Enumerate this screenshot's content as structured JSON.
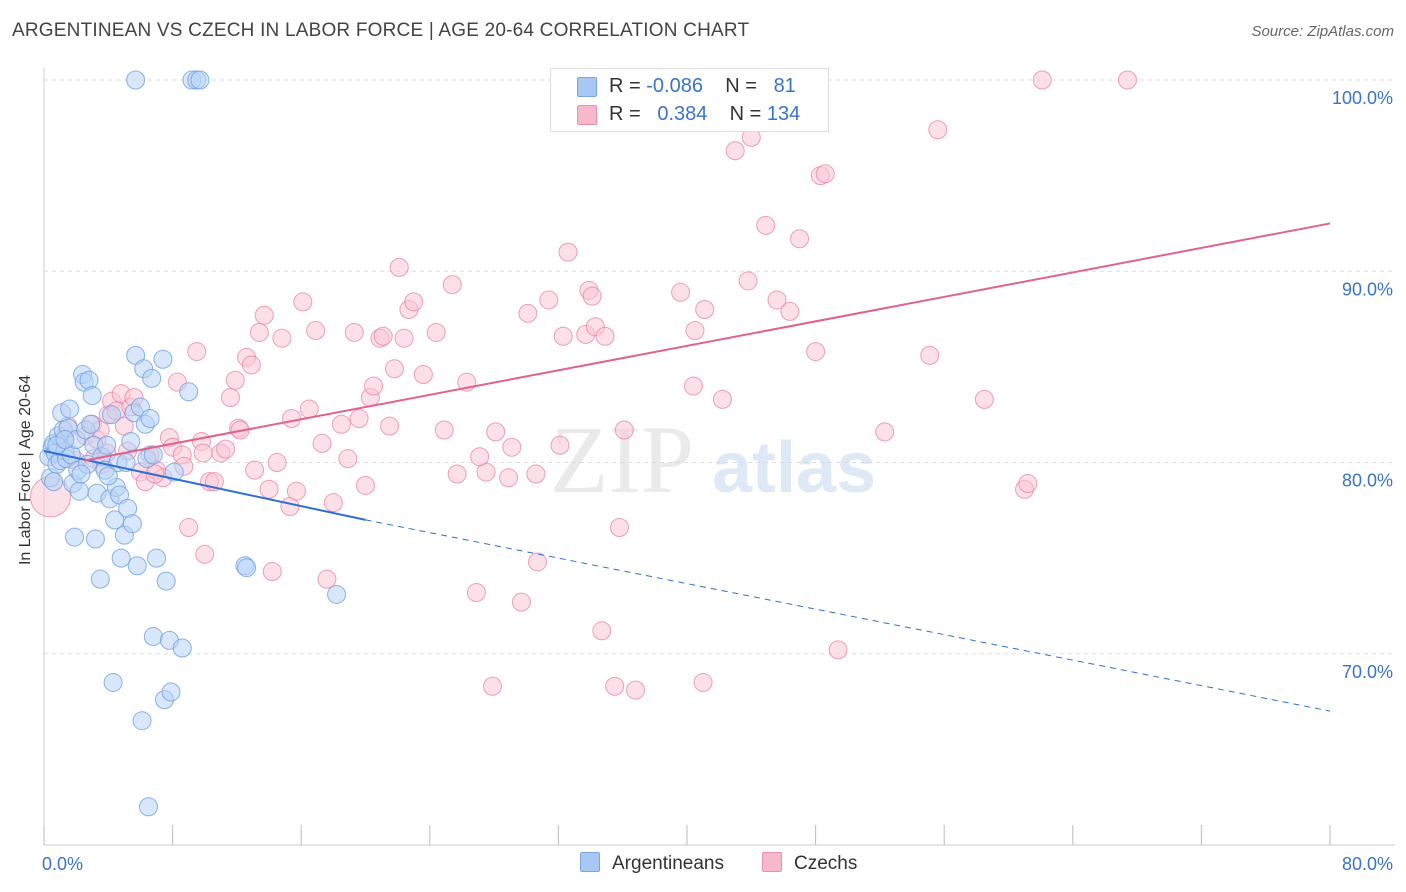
{
  "title": "ARGENTINEAN VS CZECH IN LABOR FORCE | AGE 20-64 CORRELATION CHART",
  "source": "Source: ZipAtlas.com",
  "watermark": {
    "zip": "ZIP",
    "atlas": "atlas"
  },
  "stats": [
    {
      "r_label": "R =",
      "r_value": "-0.086",
      "n_label": "N =",
      "n_value": "81",
      "color": "#a7c8f2",
      "border": "#7aa6e0"
    },
    {
      "r_label": "R =",
      "r_value": "0.384",
      "n_label": "N =",
      "n_value": "134",
      "color": "#f7b8cb",
      "border": "#ec8fae"
    }
  ],
  "legend": [
    {
      "label": "Argentineans",
      "color": "#a7c8f2",
      "border": "#7aa6e0"
    },
    {
      "label": "Czechs",
      "color": "#f7b8cb",
      "border": "#ec8fae"
    }
  ],
  "chart_data": {
    "type": "scatter",
    "title": "ARGENTINEAN VS CZECH IN LABOR FORCE | AGE 20-64 CORRELATION CHART",
    "xlabel": "",
    "ylabel": "In Labor Force | Age 20-64",
    "xlim": [
      0,
      80
    ],
    "ylim": [
      60,
      100
    ],
    "x_tick_labels": [
      "0.0%",
      "80.0%"
    ],
    "y_ticks": [
      70,
      80,
      90,
      100
    ],
    "y_tick_labels": [
      "70.0%",
      "80.0%",
      "90.0%",
      "100.0%"
    ],
    "grid": true,
    "legend_position": "bottom",
    "series": [
      {
        "name": "Argentineans",
        "color": "#6fa0e0",
        "fill": "#b8d3f5",
        "trend": {
          "x": [
            0,
            20
          ],
          "y": [
            80.6,
            77.0
          ],
          "dashed_to": [
            80,
            67.0
          ]
        },
        "points": [
          [
            0.3,
            80.3
          ],
          [
            0.4,
            79.2
          ],
          [
            0.5,
            80.8
          ],
          [
            0.6,
            81.0
          ],
          [
            0.7,
            80.5
          ],
          [
            0.8,
            79.9
          ],
          [
            0.9,
            81.4
          ],
          [
            1.0,
            80.1
          ],
          [
            1.1,
            82.6
          ],
          [
            1.2,
            81.7
          ],
          [
            1.3,
            80.6
          ],
          [
            1.4,
            80.2
          ],
          [
            1.5,
            81.8
          ],
          [
            1.6,
            82.8
          ],
          [
            1.7,
            80.4
          ],
          [
            1.8,
            78.9
          ],
          [
            1.9,
            76.1
          ],
          [
            2.0,
            81.2
          ],
          [
            2.1,
            79.6
          ],
          [
            2.2,
            78.5
          ],
          [
            2.4,
            84.6
          ],
          [
            2.5,
            84.2
          ],
          [
            2.6,
            81.7
          ],
          [
            2.7,
            79.9
          ],
          [
            2.8,
            84.3
          ],
          [
            3.0,
            83.5
          ],
          [
            3.1,
            80.9
          ],
          [
            3.2,
            76.0
          ],
          [
            3.3,
            78.4
          ],
          [
            3.5,
            73.9
          ],
          [
            3.6,
            80.3
          ],
          [
            3.8,
            79.6
          ],
          [
            4.1,
            78.1
          ],
          [
            4.2,
            82.5
          ],
          [
            4.3,
            68.5
          ],
          [
            4.4,
            77.0
          ],
          [
            4.5,
            78.7
          ],
          [
            4.6,
            80.0
          ],
          [
            4.7,
            78.3
          ],
          [
            4.8,
            75.0
          ],
          [
            5.0,
            76.2
          ],
          [
            5.2,
            77.6
          ],
          [
            5.4,
            81.1
          ],
          [
            5.5,
            76.8
          ],
          [
            5.6,
            82.6
          ],
          [
            5.7,
            85.6
          ],
          [
            5.8,
            74.6
          ],
          [
            6.0,
            82.9
          ],
          [
            6.1,
            66.5
          ],
          [
            6.2,
            84.9
          ],
          [
            6.3,
            82.0
          ],
          [
            6.4,
            80.2
          ],
          [
            6.5,
            62.0
          ],
          [
            6.6,
            82.3
          ],
          [
            6.7,
            84.4
          ],
          [
            6.8,
            70.9
          ],
          [
            7.0,
            75.0
          ],
          [
            7.4,
            85.4
          ],
          [
            7.5,
            67.6
          ],
          [
            7.6,
            73.8
          ],
          [
            7.8,
            70.7
          ],
          [
            7.9,
            68.0
          ],
          [
            8.1,
            79.5
          ],
          [
            8.6,
            70.3
          ],
          [
            9.0,
            83.7
          ],
          [
            9.2,
            100.0
          ],
          [
            9.5,
            100.0
          ],
          [
            9.7,
            100.0
          ],
          [
            5.7,
            100.0
          ],
          [
            12.5,
            74.6
          ],
          [
            12.6,
            74.5
          ],
          [
            18.2,
            73.1
          ],
          [
            6.8,
            80.4
          ],
          [
            0.8,
            80.9
          ],
          [
            2.3,
            79.4
          ],
          [
            1.3,
            81.2
          ],
          [
            3.9,
            80.9
          ],
          [
            2.9,
            82.0
          ],
          [
            5.1,
            80.0
          ],
          [
            4.0,
            79.3
          ],
          [
            0.6,
            79.0
          ]
        ]
      },
      {
        "name": "Czechs",
        "color": "#e8799e",
        "fill": "#f9c6d6",
        "trend": {
          "x": [
            2.5,
            80
          ],
          "y": [
            80.1,
            92.5
          ]
        },
        "points": [
          [
            0.4,
            78.2
          ],
          [
            1.2,
            81.3
          ],
          [
            1.5,
            81.9
          ],
          [
            2.0,
            80.1
          ],
          [
            2.6,
            81.4
          ],
          [
            3.0,
            82.0
          ],
          [
            3.1,
            80.2
          ],
          [
            3.3,
            81.2
          ],
          [
            3.5,
            81.7
          ],
          [
            3.6,
            79.9
          ],
          [
            4.0,
            82.5
          ],
          [
            4.2,
            83.2
          ],
          [
            4.5,
            82.7
          ],
          [
            4.8,
            83.6
          ],
          [
            5.0,
            81.9
          ],
          [
            5.2,
            80.6
          ],
          [
            5.4,
            82.9
          ],
          [
            5.6,
            83.4
          ],
          [
            6.0,
            79.5
          ],
          [
            6.3,
            79.0
          ],
          [
            6.6,
            80.4
          ],
          [
            7.0,
            79.6
          ],
          [
            7.4,
            79.2
          ],
          [
            7.8,
            81.3
          ],
          [
            8.0,
            80.8
          ],
          [
            8.3,
            84.2
          ],
          [
            8.6,
            80.4
          ],
          [
            9.0,
            76.6
          ],
          [
            9.5,
            85.8
          ],
          [
            9.8,
            81.1
          ],
          [
            10.0,
            75.2
          ],
          [
            10.3,
            79.0
          ],
          [
            10.6,
            79.0
          ],
          [
            11.0,
            80.5
          ],
          [
            11.3,
            80.7
          ],
          [
            11.6,
            83.4
          ],
          [
            11.9,
            84.3
          ],
          [
            12.1,
            81.8
          ],
          [
            12.6,
            85.5
          ],
          [
            12.9,
            85.1
          ],
          [
            13.1,
            79.6
          ],
          [
            13.4,
            86.8
          ],
          [
            13.7,
            87.7
          ],
          [
            14.0,
            78.6
          ],
          [
            14.2,
            74.3
          ],
          [
            14.5,
            80.0
          ],
          [
            14.8,
            86.5
          ],
          [
            15.3,
            77.7
          ],
          [
            15.7,
            78.5
          ],
          [
            16.1,
            88.4
          ],
          [
            16.5,
            82.8
          ],
          [
            16.9,
            86.9
          ],
          [
            17.3,
            81.0
          ],
          [
            17.6,
            73.9
          ],
          [
            18.0,
            77.9
          ],
          [
            18.5,
            82.0
          ],
          [
            18.9,
            80.2
          ],
          [
            19.3,
            86.8
          ],
          [
            19.6,
            82.3
          ],
          [
            20.0,
            78.8
          ],
          [
            20.3,
            83.4
          ],
          [
            20.5,
            84.0
          ],
          [
            20.9,
            86.5
          ],
          [
            21.1,
            86.6
          ],
          [
            21.8,
            84.9
          ],
          [
            22.1,
            90.2
          ],
          [
            22.4,
            86.5
          ],
          [
            22.7,
            88.0
          ],
          [
            23.0,
            88.4
          ],
          [
            23.6,
            84.6
          ],
          [
            24.4,
            86.8
          ],
          [
            24.9,
            81.7
          ],
          [
            25.4,
            89.3
          ],
          [
            25.7,
            79.4
          ],
          [
            26.3,
            84.2
          ],
          [
            26.9,
            73.2
          ],
          [
            27.5,
            79.5
          ],
          [
            27.9,
            68.3
          ],
          [
            28.1,
            81.6
          ],
          [
            28.9,
            79.2
          ],
          [
            29.1,
            80.8
          ],
          [
            29.7,
            72.7
          ],
          [
            30.1,
            87.8
          ],
          [
            30.6,
            79.4
          ],
          [
            30.7,
            74.8
          ],
          [
            31.4,
            88.5
          ],
          [
            32.1,
            80.9
          ],
          [
            32.3,
            86.6
          ],
          [
            32.6,
            91.0
          ],
          [
            33.7,
            86.7
          ],
          [
            33.9,
            89.0
          ],
          [
            34.1,
            88.7
          ],
          [
            34.3,
            87.1
          ],
          [
            34.7,
            71.2
          ],
          [
            34.9,
            86.6
          ],
          [
            35.5,
            68.3
          ],
          [
            35.8,
            76.6
          ],
          [
            36.1,
            81.7
          ],
          [
            36.8,
            68.1
          ],
          [
            37.0,
            100.0
          ],
          [
            39.1,
            98.8
          ],
          [
            39.6,
            88.9
          ],
          [
            40.4,
            84.0
          ],
          [
            40.5,
            86.9
          ],
          [
            41.0,
            68.5
          ],
          [
            41.1,
            88.0
          ],
          [
            42.2,
            83.3
          ],
          [
            43.0,
            96.3
          ],
          [
            43.8,
            89.5
          ],
          [
            44.0,
            97.0
          ],
          [
            44.9,
            92.4
          ],
          [
            45.6,
            88.5
          ],
          [
            46.4,
            87.9
          ],
          [
            47.0,
            91.7
          ],
          [
            48.0,
            85.8
          ],
          [
            48.3,
            95.0
          ],
          [
            48.6,
            95.1
          ],
          [
            49.4,
            70.2
          ],
          [
            52.3,
            81.6
          ],
          [
            55.1,
            85.6
          ],
          [
            55.6,
            97.4
          ],
          [
            58.5,
            83.3
          ],
          [
            61.0,
            78.6
          ],
          [
            61.2,
            78.9
          ],
          [
            62.1,
            100.0
          ],
          [
            67.4,
            100.0
          ],
          [
            12.2,
            81.7
          ],
          [
            9.9,
            80.5
          ],
          [
            6.9,
            79.4
          ],
          [
            15.4,
            82.3
          ],
          [
            8.7,
            79.8
          ],
          [
            3.9,
            80.5
          ],
          [
            27.1,
            80.3
          ],
          [
            21.5,
            81.9
          ]
        ]
      }
    ]
  }
}
